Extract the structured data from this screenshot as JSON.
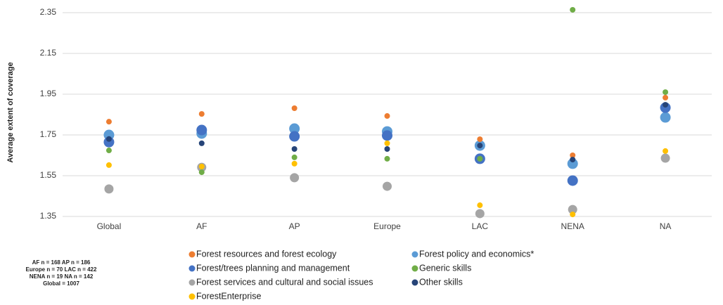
{
  "chart_data": {
    "type": "scatter",
    "y_label": "Average extent of coverage",
    "categories": [
      "Global",
      "AF",
      "AP",
      "Europe",
      "LAC",
      "NENA",
      "NA"
    ],
    "ylim": [
      1.35,
      2.35
    ],
    "yticks": [
      1.35,
      1.55,
      1.75,
      1.95,
      2.15,
      2.35
    ],
    "grid": true,
    "series": [
      {
        "name": "Forest resources and forest ecology",
        "color": "#ED7D31",
        "values": [
          1.815,
          1.853,
          1.881,
          1.843,
          1.729,
          1.65,
          1.933
        ]
      },
      {
        "name": "Forest/trees planning and management",
        "color": "#4472C4",
        "values": [
          1.715,
          1.774,
          1.743,
          1.747,
          1.633,
          1.526,
          1.884
        ]
      },
      {
        "name": "Forest services and cultural and social issues",
        "color": "#A5A5A5",
        "values": [
          1.485,
          1.591,
          1.54,
          1.498,
          1.364,
          1.384,
          1.636
        ]
      },
      {
        "name": "ForestEnterprise",
        "color": "#FFC000",
        "values": [
          1.602,
          1.595,
          1.609,
          1.709,
          1.405,
          1.36,
          1.671
        ]
      },
      {
        "name": "Forest policy and economics*",
        "color": "#5B9BD5",
        "values": [
          1.75,
          1.757,
          1.781,
          1.767,
          1.698,
          1.609,
          1.836
        ]
      },
      {
        "name": "Generic skills",
        "color": "#70AD47",
        "values": [
          1.674,
          1.567,
          1.64,
          1.633,
          1.633,
          2.364,
          1.96
        ]
      },
      {
        "name": "Other skills",
        "color": "#264478",
        "values": [
          1.73,
          1.709,
          1.681,
          1.681,
          1.698,
          1.629,
          1.898
        ]
      }
    ],
    "notes": [
      "AF n = 168  AP n = 186",
      "Europe n = 70  LAC n = 422",
      "NENA n = 19  NA n = 142",
      "Global = 1007"
    ]
  }
}
